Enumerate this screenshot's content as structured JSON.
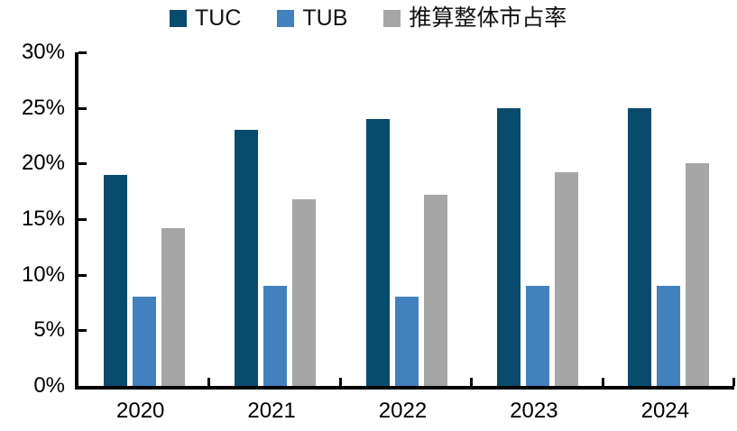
{
  "chart_data": {
    "type": "bar",
    "title": "",
    "xlabel": "",
    "ylabel": "",
    "categories": [
      "2020",
      "2021",
      "2022",
      "2023",
      "2024"
    ],
    "series": [
      {
        "name": "TUC",
        "color": "#094B6D",
        "values": [
          19,
          23,
          24,
          25,
          25
        ]
      },
      {
        "name": "TUB",
        "color": "#4381BE",
        "values": [
          8,
          9,
          8,
          9,
          9
        ]
      },
      {
        "name": "推算整体市占率",
        "color": "#A6A6A6",
        "values": [
          14.2,
          16.8,
          17.2,
          19.2,
          20.0
        ]
      }
    ],
    "ylim": [
      0,
      30
    ],
    "ytick_step": 5,
    "ytick_labels": [
      "0%",
      "5%",
      "10%",
      "15%",
      "20%",
      "25%",
      "30%"
    ],
    "grid": false,
    "legend_position": "top",
    "axis_color": "#000000",
    "background_color": "#ffffff"
  }
}
